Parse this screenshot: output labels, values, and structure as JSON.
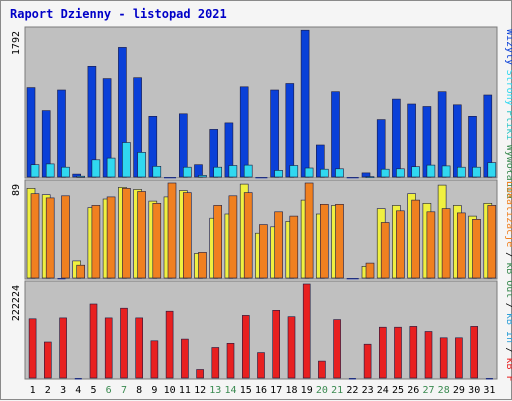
{
  "title": "Raport Dzienny -  listopad 2021",
  "colors": {
    "background": "#f5f5f5",
    "plot": "#c0c0c0",
    "weekday": "#000000",
    "weekend": "#3a8a50",
    "visits": "#0a40d8",
    "pages": "#30d8f0",
    "hits": "#30c8c8",
    "sites": "#f0f040",
    "kb_in": "#f08020",
    "kb_out": "#f08020",
    "kb_f": "#e82020"
  },
  "legend": {
    "right": [
      {
        "key": "visits",
        "label": "Wizyty",
        "color": "#0a40d8"
      },
      {
        "key": "pages",
        "label": "Strony",
        "color": "#30d8f0"
      },
      {
        "key": "hits",
        "label": "Pliki",
        "color": "#30c8c8"
      },
      {
        "key": "sep1",
        "label": "/",
        "color": "#000000"
      },
      {
        "key": "sep2",
        "label": "/",
        "color": "#000000"
      },
      {
        "key": "wyw",
        "label": "Wywołania",
        "color": "#3a8a50"
      }
    ],
    "middle": [
      {
        "label": "Lokalizacje",
        "color": "#f08020"
      },
      {
        "label": "/",
        "color": "#000000"
      },
      {
        "label": "kB Out",
        "color": "#3a8a50"
      },
      {
        "label": "/",
        "color": "#000000"
      },
      {
        "label": "kB In",
        "color": "#30a0d8"
      },
      {
        "label": "/",
        "color": "#000000"
      },
      {
        "label": "kB F",
        "color": "#e82020"
      }
    ]
  },
  "chart_data": {
    "type": "bar",
    "title": "Raport Dzienny -  listopad 2021",
    "categories": [
      "1",
      "2",
      "3",
      "4",
      "5",
      "6",
      "7",
      "8",
      "9",
      "10",
      "11",
      "12",
      "13",
      "14",
      "15",
      "16",
      "17",
      "18",
      "19",
      "20",
      "21",
      "22",
      "23",
      "24",
      "25",
      "26",
      "27",
      "28",
      "29",
      "30",
      "31"
    ],
    "weekend_days": [
      6,
      7,
      13,
      14,
      20,
      21,
      27,
      28
    ],
    "panels": [
      {
        "name": "top",
        "ymax_label": "1792",
        "ymax": 1792,
        "series": [
          {
            "key": "visits",
            "values": [
              1090,
              810,
              1060,
              35,
              1350,
              1200,
              1580,
              1210,
              740,
              0,
              770,
              150,
              580,
              660,
              1100,
              0,
              1060,
              1140,
              1790,
              390,
              1040,
              0,
              50,
              700,
              950,
              890,
              860,
              1040,
              880,
              740,
              1000
            ]
          },
          {
            "key": "pages",
            "values": [
              150,
              160,
              120,
              10,
              210,
              230,
              420,
              300,
              130,
              0,
              120,
              20,
              120,
              140,
              145,
              0,
              80,
              140,
              110,
              95,
              100,
              0,
              5,
              95,
              100,
              125,
              145,
              135,
              120,
              120,
              175
            ]
          }
        ]
      },
      {
        "name": "middle",
        "ymax_label": "89",
        "ymax": 89,
        "series": [
          {
            "key": "sites",
            "values": [
              84,
              78,
              0,
              16,
              66,
              74,
              85,
              83,
              72,
              76,
              82,
              23,
              56,
              60,
              88,
              42,
              48,
              53,
              73,
              60,
              68,
              0,
              11,
              65,
              68,
              79,
              70,
              87,
              68,
              58,
              70
            ]
          },
          {
            "key": "kb_in",
            "values": [
              79,
              75,
              77,
              12,
              68,
              76,
              84,
              81,
              70,
              89,
              80,
              24,
              68,
              77,
              80,
              50,
              62,
              58,
              89,
              69,
              69,
              0,
              14,
              52,
              63,
              73,
              62,
              65,
              61,
              55,
              68
            ]
          }
        ]
      },
      {
        "name": "bottom",
        "ymax_label": "222224",
        "ymax": 222224,
        "series": [
          {
            "key": "kb_f",
            "values": [
              140000,
              85000,
              142000,
              0,
              175000,
              142000,
              165000,
              142000,
              88000,
              158000,
              92000,
              20000,
              72000,
              82000,
              148000,
              60000,
              160000,
              145000,
              222224,
              40000,
              138000,
              0,
              80000,
              120000,
              120000,
              122000,
              110000,
              95000,
              95000,
              122000,
              0
            ]
          }
        ]
      }
    ],
    "ylim": [
      0,
      1792
    ]
  }
}
